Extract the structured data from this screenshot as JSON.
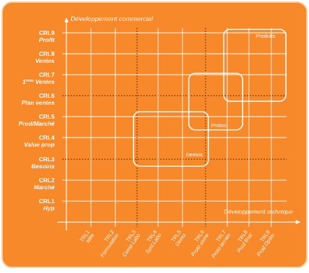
{
  "colors": {
    "background": "#ffffff",
    "panel": "#f7892b",
    "panel_border": "#fbd3a8",
    "lines": "#ffffff"
  },
  "axes": {
    "y_title": "Développement commercial",
    "x_title": "Développement technique"
  },
  "crl_levels": [
    {
      "code": "CRL9",
      "name": "Profit"
    },
    {
      "code": "CRL8",
      "name": "Ventes"
    },
    {
      "code": "CRL7",
      "name_sup": "ères",
      "name_pre": "1",
      "name_post": " Ventes"
    },
    {
      "code": "CRL6",
      "name": "Plan ventes"
    },
    {
      "code": "CRL5",
      "name": "Prod/Marché"
    },
    {
      "code": "CRL4",
      "name": "Value prop"
    },
    {
      "code": "CRL3",
      "name": "Besoins"
    },
    {
      "code": "CRL2",
      "name": "Marché"
    },
    {
      "code": "CRL1",
      "name": "Hyp"
    }
  ],
  "trl_levels": [
    {
      "code": "TRL1",
      "name": "Idée"
    },
    {
      "code": "TRL2",
      "name": "Formulation"
    },
    {
      "code": "TRL3",
      "name": "Comp Labo"
    },
    {
      "code": "TRL4",
      "name": "Syst Labo"
    },
    {
      "code": "TRL5",
      "name": "Demo"
    },
    {
      "code": "TRL6",
      "name": "Proto usine"
    },
    {
      "code": "TRL7",
      "name": "Proto terrain"
    },
    {
      "code": "TRL8",
      "name": "Prod final"
    },
    {
      "code": "TRL9",
      "name": "Prod Optim"
    }
  ],
  "zones": {
    "demos": "Demos",
    "protos": "Protos",
    "produits": "Produits"
  }
}
